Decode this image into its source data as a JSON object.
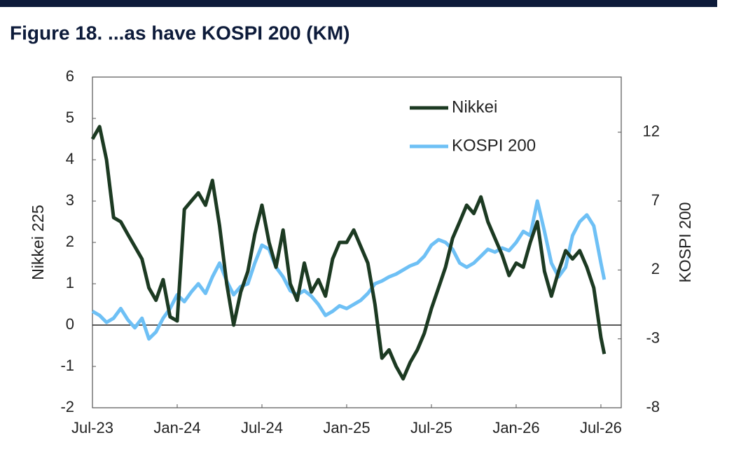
{
  "chart_data": {
    "type": "line",
    "title": "Figure 18. ...as have KOSPI 200 (KM)",
    "y_label": "Nikkei 225",
    "y2_label": "KOSPI 200",
    "legend": "upper right",
    "x": [
      2023.5,
      2023.542,
      2023.583,
      2023.625,
      2023.667,
      2023.708,
      2023.75,
      2023.792,
      2023.833,
      2023.875,
      2023.917,
      2023.958,
      2024.0,
      2024.042,
      2024.083,
      2024.125,
      2024.167,
      2024.208,
      2024.25,
      2024.292,
      2024.333,
      2024.375,
      2024.417,
      2024.458,
      2024.5,
      2024.542,
      2024.583,
      2024.625,
      2024.667,
      2024.708,
      2024.75,
      2024.792,
      2024.833,
      2024.875,
      2024.917,
      2024.958,
      2025.0,
      2025.042,
      2025.083,
      2025.125,
      2025.167,
      2025.208,
      2025.25,
      2025.292,
      2025.333,
      2025.375,
      2025.417,
      2025.458,
      2025.5,
      2025.542,
      2025.583,
      2025.625,
      2025.667,
      2025.708,
      2025.75,
      2025.792,
      2025.833,
      2025.875,
      2025.917,
      2025.958,
      2026.0,
      2026.042,
      2026.083,
      2026.125,
      2026.167,
      2026.208,
      2026.25,
      2026.292,
      2026.333,
      2026.375,
      2026.417,
      2026.458,
      2026.5,
      2026.52
    ],
    "series": [
      {
        "name": "Nikkei",
        "color": "#1c3a22",
        "values": [
          4.5,
          4.8,
          4.0,
          2.6,
          2.5,
          2.2,
          1.9,
          1.6,
          0.9,
          0.6,
          1.1,
          0.2,
          0.1,
          2.8,
          3.0,
          3.2,
          2.9,
          3.5,
          2.4,
          1.0,
          0.0,
          0.8,
          1.3,
          2.2,
          2.9,
          2.0,
          1.4,
          2.3,
          1.0,
          0.6,
          1.5,
          0.8,
          1.1,
          0.7,
          1.6,
          2.0,
          2.0,
          2.3,
          1.9,
          1.5,
          0.5,
          -0.8,
          -0.6,
          -1.0,
          -1.3,
          -0.9,
          -0.6,
          -0.2,
          0.4,
          0.9,
          1.4,
          2.1,
          2.5,
          2.9,
          2.7,
          3.1,
          2.5,
          2.1,
          1.7,
          1.2,
          1.5,
          1.4,
          2.0,
          2.5,
          1.3,
          0.7,
          1.3,
          1.8,
          1.6,
          1.8,
          1.4,
          0.9,
          -0.3,
          -0.7
        ]
      },
      {
        "name": "KOSPI 200",
        "color": "#6ec0f5",
        "axis": "y2",
        "values": [
          -1.0,
          -1.3,
          -1.8,
          -1.5,
          -0.8,
          -1.6,
          -2.2,
          -1.5,
          -3.0,
          -2.5,
          -1.5,
          -0.8,
          0.2,
          -0.3,
          0.4,
          1.0,
          0.3,
          1.5,
          2.5,
          1.2,
          0.2,
          0.8,
          1.0,
          2.5,
          3.8,
          3.5,
          2.2,
          1.5,
          0.5,
          0.2,
          0.5,
          0.1,
          -0.5,
          -1.3,
          -1.0,
          -0.6,
          -0.8,
          -0.5,
          -0.2,
          0.3,
          1.0,
          1.2,
          1.5,
          1.7,
          2.0,
          2.3,
          2.5,
          3.0,
          3.8,
          4.2,
          4.0,
          3.5,
          2.5,
          2.2,
          2.5,
          3.0,
          3.5,
          3.3,
          3.6,
          3.4,
          4.0,
          4.8,
          4.5,
          7.0,
          4.8,
          2.5,
          1.5,
          2.2,
          4.5,
          5.5,
          6.0,
          5.2,
          2.5,
          1.3
        ]
      }
    ],
    "xlim": [
      2023.5,
      2026.62
    ],
    "xticks": [
      {
        "value": 2023.5,
        "label": "Jul-23"
      },
      {
        "value": 2024.0,
        "label": "Jan-24"
      },
      {
        "value": 2024.5,
        "label": "Jul-24"
      },
      {
        "value": 2025.0,
        "label": "Jan-25"
      },
      {
        "value": 2025.5,
        "label": "Jul-25"
      },
      {
        "value": 2026.0,
        "label": "Jan-26"
      },
      {
        "value": 2026.5,
        "label": "Jul-26"
      }
    ],
    "ylim": [
      -2,
      6
    ],
    "yticks": [
      -2,
      -1,
      0,
      1,
      2,
      3,
      4,
      5,
      6
    ],
    "y2lim": [
      -8,
      16
    ],
    "y2ticks": [
      -8,
      -3,
      2,
      7,
      12
    ]
  }
}
